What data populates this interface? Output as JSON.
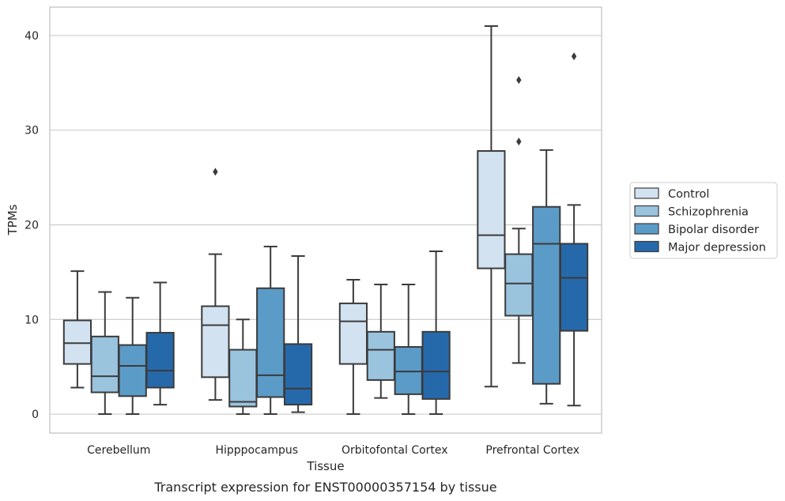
{
  "chart_data": {
    "type": "box",
    "caption": "Transcript expression for ENST00000357154 by tissue",
    "xlabel": "Tissue",
    "ylabel": "TPMs",
    "ylim": [
      -2,
      43
    ],
    "yticks": [
      0,
      10,
      20,
      30,
      40
    ],
    "grid": "y",
    "legend_position": "right",
    "categories": [
      "Cerebellum",
      "Hipppocampus",
      "Orbitofontal Cortex",
      "Prefrontal Cortex"
    ],
    "series": [
      {
        "name": "Control",
        "color": "#d2e2f1",
        "boxes": [
          {
            "whislo": 2.8,
            "q1": 5.3,
            "med": 7.5,
            "q3": 9.9,
            "whishi": 15.1,
            "fliers": []
          },
          {
            "whislo": 1.5,
            "q1": 3.9,
            "med": 9.4,
            "q3": 11.4,
            "whishi": 16.9,
            "fliers": [
              25.6
            ]
          },
          {
            "whislo": 0.0,
            "q1": 5.3,
            "med": 9.8,
            "q3": 11.7,
            "whishi": 14.2,
            "fliers": []
          },
          {
            "whislo": 2.9,
            "q1": 15.4,
            "med": 18.9,
            "q3": 27.8,
            "whishi": 41.0,
            "fliers": []
          }
        ]
      },
      {
        "name": "Schizophrenia",
        "color": "#9ac3de",
        "boxes": [
          {
            "whislo": 0.0,
            "q1": 2.3,
            "med": 4.0,
            "q3": 8.2,
            "whishi": 12.9,
            "fliers": []
          },
          {
            "whislo": 0.0,
            "q1": 0.8,
            "med": 1.3,
            "q3": 6.8,
            "whishi": 10.0,
            "fliers": []
          },
          {
            "whislo": 1.7,
            "q1": 3.6,
            "med": 6.8,
            "q3": 8.7,
            "whishi": 13.7,
            "fliers": []
          },
          {
            "whislo": 5.4,
            "q1": 10.4,
            "med": 13.8,
            "q3": 16.9,
            "whishi": 19.6,
            "fliers": [
              28.8,
              35.3
            ]
          }
        ]
      },
      {
        "name": "Bipolar disorder",
        "color": "#5b9bc8",
        "boxes": [
          {
            "whislo": 0.0,
            "q1": 1.9,
            "med": 5.1,
            "q3": 7.3,
            "whishi": 12.3,
            "fliers": []
          },
          {
            "whislo": 0.0,
            "q1": 1.8,
            "med": 4.1,
            "q3": 13.3,
            "whishi": 17.7,
            "fliers": []
          },
          {
            "whislo": 0.0,
            "q1": 2.1,
            "med": 4.5,
            "q3": 7.1,
            "whishi": 13.7,
            "fliers": []
          },
          {
            "whislo": 1.1,
            "q1": 3.2,
            "med": 18.0,
            "q3": 21.9,
            "whishi": 27.9,
            "fliers": []
          }
        ]
      },
      {
        "name": "Major depression",
        "color": "#2669ab",
        "boxes": [
          {
            "whislo": 1.0,
            "q1": 2.8,
            "med": 4.6,
            "q3": 8.6,
            "whishi": 13.9,
            "fliers": []
          },
          {
            "whislo": 0.2,
            "q1": 1.0,
            "med": 2.7,
            "q3": 7.4,
            "whishi": 16.7,
            "fliers": []
          },
          {
            "whislo": 0.0,
            "q1": 1.6,
            "med": 4.5,
            "q3": 8.7,
            "whishi": 17.2,
            "fliers": []
          },
          {
            "whislo": 0.9,
            "q1": 8.8,
            "med": 14.4,
            "q3": 18.0,
            "whishi": 22.1,
            "fliers": [
              37.8
            ]
          }
        ]
      }
    ]
  }
}
